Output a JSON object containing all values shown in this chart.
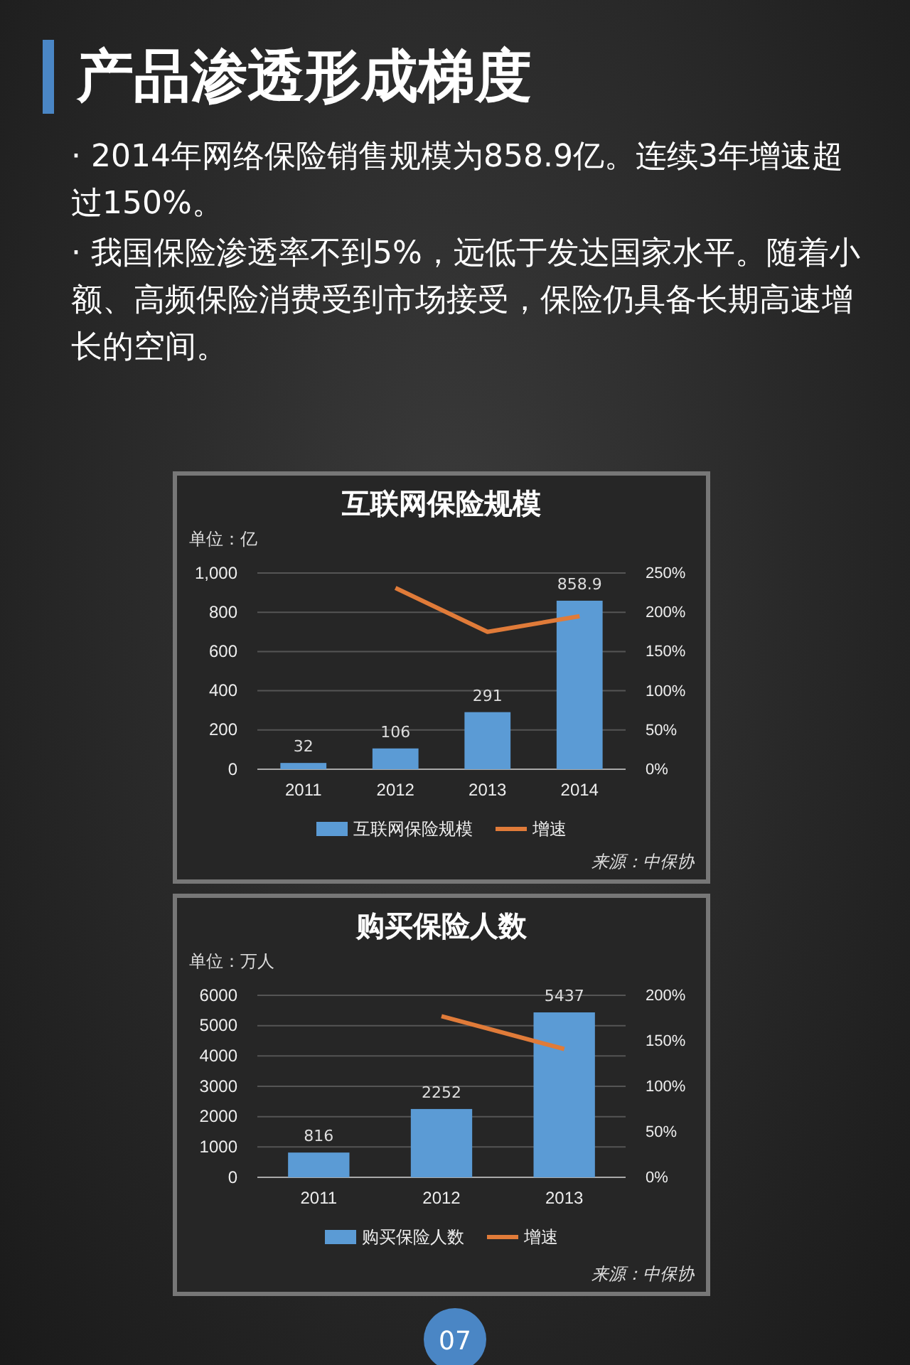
{
  "chart_data": [
    {
      "type": "bar",
      "title": "互联网保险规模",
      "ylabel": "单位：亿",
      "annotations": [
        "产品渗透形成梯度",
        "· 2014年网络保险销售规模为858.9亿。连续3年增速超过150%。",
        "· 我国保险渗透率不到5%，远低于发达国家水平。随着小额、高频保险消费受到市场接受，保险仍具备长期高速增长的空间。",
        "来源：中保协"
      ],
      "categories": [
        "2011",
        "2012",
        "2013",
        "2014"
      ],
      "series": [
        {
          "name": "互联网保险规模",
          "color": "#5b9bd5",
          "values": [
            32,
            106,
            291,
            858.9
          ],
          "value_labels": [
            "32",
            "106",
            "291",
            "858.9"
          ]
        },
        {
          "name": "增速",
          "type": "line",
          "axis": "y2",
          "color": "#e07b39",
          "values": [
            null,
            231,
            175,
            195
          ]
        }
      ],
      "ylim": [
        0,
        1000
      ],
      "yticks": [
        0,
        200,
        400,
        600,
        800,
        {
          "value": 1000,
          "label": "1,000"
        }
      ],
      "y2lim": [
        0,
        250
      ],
      "y2ticks": [
        {
          "value": 0,
          "label": "0%"
        },
        {
          "value": 50,
          "label": "50%"
        },
        {
          "value": 100,
          "label": "100%"
        },
        {
          "value": 150,
          "label": "150%"
        },
        {
          "value": 200,
          "label": "200%"
        },
        {
          "value": 250,
          "label": "250%"
        }
      ],
      "grid": "y",
      "legend": "bottom"
    },
    {
      "type": "bar",
      "title": "购买保险人数",
      "ylabel": "单位：万人",
      "annotations": [
        "来源：中保协",
        "07"
      ],
      "categories": [
        "2011",
        "2012",
        "2013"
      ],
      "series": [
        {
          "name": "购买保险人数",
          "color": "#5b9bd5",
          "values": [
            816,
            2252,
            5437
          ],
          "value_labels": [
            "816",
            "2252",
            "5437"
          ]
        },
        {
          "name": "增速",
          "type": "line",
          "axis": "y2",
          "color": "#e07b39",
          "values": [
            null,
            177,
            141
          ]
        }
      ],
      "ylim": [
        0,
        6000
      ],
      "yticks": [
        0,
        1000,
        2000,
        3000,
        4000,
        5000,
        6000
      ],
      "y2lim": [
        0,
        200
      ],
      "y2ticks": [
        {
          "value": 0,
          "label": "0%"
        },
        {
          "value": 50,
          "label": "50%"
        },
        {
          "value": 100,
          "label": "100%"
        },
        {
          "value": 150,
          "label": "150%"
        },
        {
          "value": 200,
          "label": "200%"
        }
      ],
      "grid": "y",
      "legend": "bottom"
    }
  ]
}
